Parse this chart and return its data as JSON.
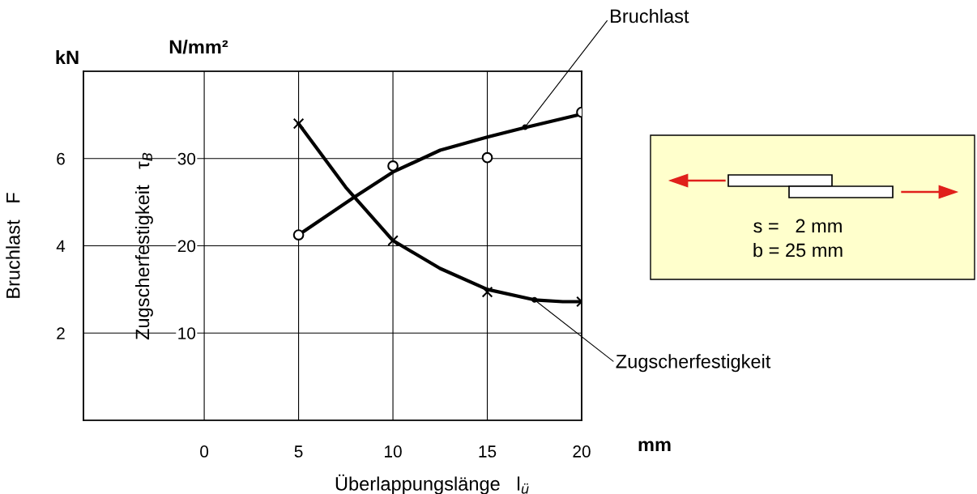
{
  "chart_data": {
    "type": "line",
    "xlabel": "Überlappungslänge   l$_{ü}$",
    "ylabel": "Zugscherfestigkeit   τ$_{B}$",
    "y2label": "Bruchlast   F",
    "xlim": [
      -6.4,
      20
    ],
    "xticks": [
      0,
      5,
      10,
      15,
      20
    ],
    "ylim": [
      0,
      40
    ],
    "yticks": [
      10,
      20,
      30
    ],
    "y2lim": [
      0,
      8
    ],
    "y2ticks": [
      2,
      4,
      6
    ],
    "grid": true,
    "series": [
      {
        "type": "scatter",
        "axis": "y2",
        "marker": "circle",
        "color": "#000000",
        "x": [
          5,
          10,
          15,
          20
        ],
        "values": [
          4.25,
          5.83,
          6.02,
          7.06
        ]
      },
      {
        "axis": "y2",
        "marker": "none",
        "color": "#000000",
        "x": [
          5,
          7.9,
          10,
          12.5,
          15,
          17,
          20
        ],
        "values": [
          4.25,
          5.1,
          5.69,
          6.19,
          6.49,
          6.71,
          7.02
        ]
      },
      {
        "type": "scatter",
        "axis": "y",
        "marker": "cross",
        "color": "#000000",
        "x": [
          5,
          10,
          15,
          20
        ],
        "values": [
          34.0,
          20.6,
          14.7,
          13.6
        ]
      },
      {
        "axis": "y",
        "marker": "none",
        "color": "#000000",
        "x": [
          5,
          7.5,
          10,
          12.5,
          15,
          17.5,
          19,
          20
        ],
        "values": [
          34.0,
          26.7,
          20.6,
          17.4,
          15.0,
          13.8,
          13.6,
          13.6
        ]
      }
    ],
    "annotations": [
      {
        "text": "Bruchlast",
        "x": 17,
        "y": 33.6
      },
      {
        "text": "Zugscherfestigkeit",
        "x": 17.5,
        "y": 13.8
      },
      "kN",
      "N/mm²",
      "mm",
      "s =   2 mm",
      "b = 25 mm"
    ]
  }
}
